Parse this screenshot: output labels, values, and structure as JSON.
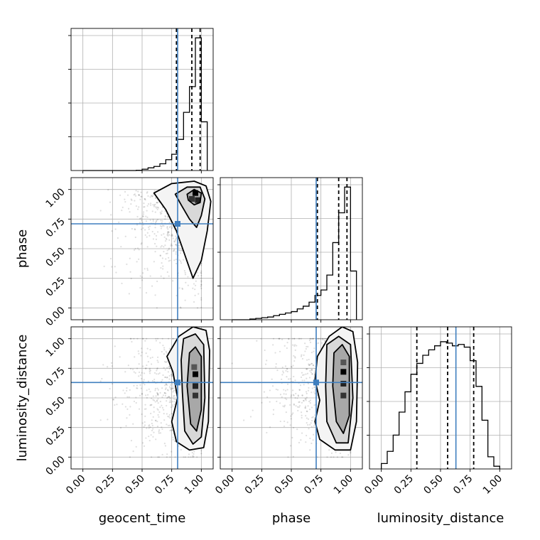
{
  "chart_data": {
    "type": "corner",
    "parameters": [
      "geocent_time",
      "phase",
      "luminosity_distance"
    ],
    "truths": [
      0.8,
      0.71,
      0.63
    ],
    "grid": true,
    "tick_labels": [
      "0.00",
      "0.25",
      "0.50",
      "0.75",
      "1.00"
    ],
    "range": [
      -0.1,
      1.1
    ],
    "truth_color": "#3f7fbf",
    "contour_color": "#000000",
    "quantile_color": "#000000",
    "marginals": [
      {
        "parameter": "geocent_time",
        "edges": [
          0.0,
          0.05,
          0.1,
          0.15,
          0.2,
          0.25,
          0.3,
          0.35,
          0.4,
          0.45,
          0.5,
          0.55,
          0.6,
          0.65,
          0.7,
          0.75,
          0.8,
          0.85,
          0.9,
          0.95,
          1.0,
          1.05
        ],
        "counts": [
          0.0,
          0.0,
          0.0,
          0.0,
          0.0,
          0.0,
          0.0,
          0.0,
          0.0,
          0.002,
          0.01,
          0.02,
          0.03,
          0.05,
          0.08,
          0.12,
          0.23,
          0.43,
          0.62,
          0.98,
          0.36
        ],
        "ymax": 1.05,
        "quantiles": [
          0.79,
          0.92,
          0.99
        ]
      },
      {
        "parameter": "phase",
        "edges": [
          0.0,
          0.05,
          0.1,
          0.15,
          0.2,
          0.25,
          0.3,
          0.35,
          0.4,
          0.45,
          0.5,
          0.55,
          0.6,
          0.65,
          0.7,
          0.75,
          0.8,
          0.85,
          0.9,
          0.95,
          1.0,
          1.05
        ],
        "counts": [
          0.0,
          0.0,
          0.0,
          0.005,
          0.01,
          0.015,
          0.02,
          0.03,
          0.04,
          0.05,
          0.06,
          0.08,
          0.1,
          0.13,
          0.18,
          0.22,
          0.33,
          0.57,
          0.79,
          0.98,
          0.36
        ],
        "ymax": 1.05,
        "quantiles": [
          0.72,
          0.9,
          0.97
        ]
      },
      {
        "parameter": "luminosity_distance",
        "edges": [
          0.0,
          0.05,
          0.1,
          0.15,
          0.2,
          0.25,
          0.3,
          0.35,
          0.4,
          0.45,
          0.5,
          0.55,
          0.6,
          0.65,
          0.7,
          0.75,
          0.8,
          0.85,
          0.9,
          0.95,
          1.0
        ],
        "counts": [
          0.04,
          0.13,
          0.25,
          0.42,
          0.57,
          0.7,
          0.78,
          0.84,
          0.88,
          0.91,
          0.94,
          0.93,
          0.91,
          0.92,
          0.9,
          0.8,
          0.61,
          0.36,
          0.09,
          0.02
        ],
        "ymax": 1.05,
        "quantiles": [
          0.3,
          0.56,
          0.78
        ]
      }
    ],
    "joint": [
      {
        "x_parameter": "geocent_time",
        "y_parameter": "phase",
        "scatter": {
          "x_range": [
            0.15,
            1.0
          ],
          "y_range": [
            0.0,
            1.0
          ],
          "peak": [
            0.95,
            0.95
          ]
        },
        "contours": [
          [
            [
              0.6,
              0.97
            ],
            [
              0.75,
              1.05
            ],
            [
              0.94,
              1.07
            ],
            [
              1.04,
              1.03
            ],
            [
              1.08,
              0.9
            ],
            [
              1.05,
              0.65
            ],
            [
              1.0,
              0.4
            ],
            [
              0.93,
              0.25
            ],
            [
              0.86,
              0.45
            ],
            [
              0.79,
              0.65
            ],
            [
              0.7,
              0.83
            ]
          ],
          [
            [
              0.78,
              0.96
            ],
            [
              0.88,
              1.02
            ],
            [
              0.99,
              1.02
            ],
            [
              1.03,
              0.92
            ],
            [
              1.0,
              0.78
            ],
            [
              0.96,
              0.68
            ],
            [
              0.9,
              0.75
            ],
            [
              0.83,
              0.87
            ]
          ],
          [
            [
              0.88,
              0.96
            ],
            [
              0.94,
              1.0
            ],
            [
              1.0,
              0.97
            ],
            [
              0.99,
              0.89
            ],
            [
              0.94,
              0.87
            ],
            [
              0.89,
              0.91
            ]
          ]
        ],
        "density_peaks": [
          [
            0.95,
            0.97
          ],
          [
            0.97,
            0.91
          ],
          [
            0.92,
            0.92
          ]
        ]
      },
      {
        "x_parameter": "geocent_time",
        "y_parameter": "luminosity_distance",
        "scatter": {
          "x_range": [
            0.15,
            1.0
          ],
          "y_range": [
            0.0,
            1.0
          ],
          "peak": [
            0.95,
            0.55
          ]
        },
        "contours": [
          [
            [
              0.81,
              1.02
            ],
            [
              0.93,
              1.1
            ],
            [
              1.04,
              1.07
            ],
            [
              1.07,
              0.9
            ],
            [
              1.06,
              0.3
            ],
            [
              1.02,
              0.08
            ],
            [
              0.9,
              0.06
            ],
            [
              0.79,
              0.13
            ],
            [
              0.75,
              0.3
            ],
            [
              0.8,
              0.5
            ],
            [
              0.76,
              0.72
            ],
            [
              0.71,
              0.85
            ]
          ],
          [
            [
              0.85,
              1.0
            ],
            [
              0.95,
              1.04
            ],
            [
              1.02,
              0.95
            ],
            [
              1.03,
              0.5
            ],
            [
              1.0,
              0.17
            ],
            [
              0.93,
              0.11
            ],
            [
              0.86,
              0.22
            ],
            [
              0.84,
              0.55
            ],
            [
              0.83,
              0.82
            ]
          ],
          [
            [
              0.9,
              0.88
            ],
            [
              0.95,
              0.93
            ],
            [
              1.0,
              0.85
            ],
            [
              1.0,
              0.4
            ],
            [
              0.96,
              0.22
            ],
            [
              0.91,
              0.28
            ],
            [
              0.88,
              0.6
            ]
          ]
        ],
        "density_peaks": [
          [
            0.95,
            0.7
          ],
          [
            0.95,
            0.6
          ],
          [
            0.95,
            0.52
          ],
          [
            0.94,
            0.76
          ]
        ]
      },
      {
        "x_parameter": "phase",
        "y_parameter": "luminosity_distance",
        "scatter": {
          "x_range": [
            0.0,
            1.0
          ],
          "y_range": [
            0.0,
            1.0
          ],
          "peak": [
            0.94,
            0.6
          ]
        },
        "contours": [
          [
            [
              0.72,
              0.85
            ],
            [
              0.82,
              1.02
            ],
            [
              0.93,
              1.1
            ],
            [
              1.02,
              1.06
            ],
            [
              1.06,
              0.8
            ],
            [
              1.05,
              0.3
            ],
            [
              1.0,
              0.06
            ],
            [
              0.87,
              0.06
            ],
            [
              0.74,
              0.15
            ],
            [
              0.7,
              0.3
            ],
            [
              0.74,
              0.48
            ],
            [
              0.7,
              0.65
            ]
          ],
          [
            [
              0.8,
              0.95
            ],
            [
              0.9,
              1.02
            ],
            [
              1.0,
              0.95
            ],
            [
              1.02,
              0.5
            ],
            [
              0.98,
              0.12
            ],
            [
              0.88,
              0.12
            ],
            [
              0.8,
              0.3
            ],
            [
              0.79,
              0.6
            ]
          ],
          [
            [
              0.86,
              0.88
            ],
            [
              0.93,
              0.95
            ],
            [
              0.99,
              0.85
            ],
            [
              0.99,
              0.35
            ],
            [
              0.94,
              0.2
            ],
            [
              0.88,
              0.3
            ],
            [
              0.85,
              0.6
            ]
          ]
        ],
        "density_peaks": [
          [
            0.94,
            0.72
          ],
          [
            0.94,
            0.62
          ],
          [
            0.94,
            0.52
          ],
          [
            0.94,
            0.8
          ]
        ]
      }
    ]
  }
}
